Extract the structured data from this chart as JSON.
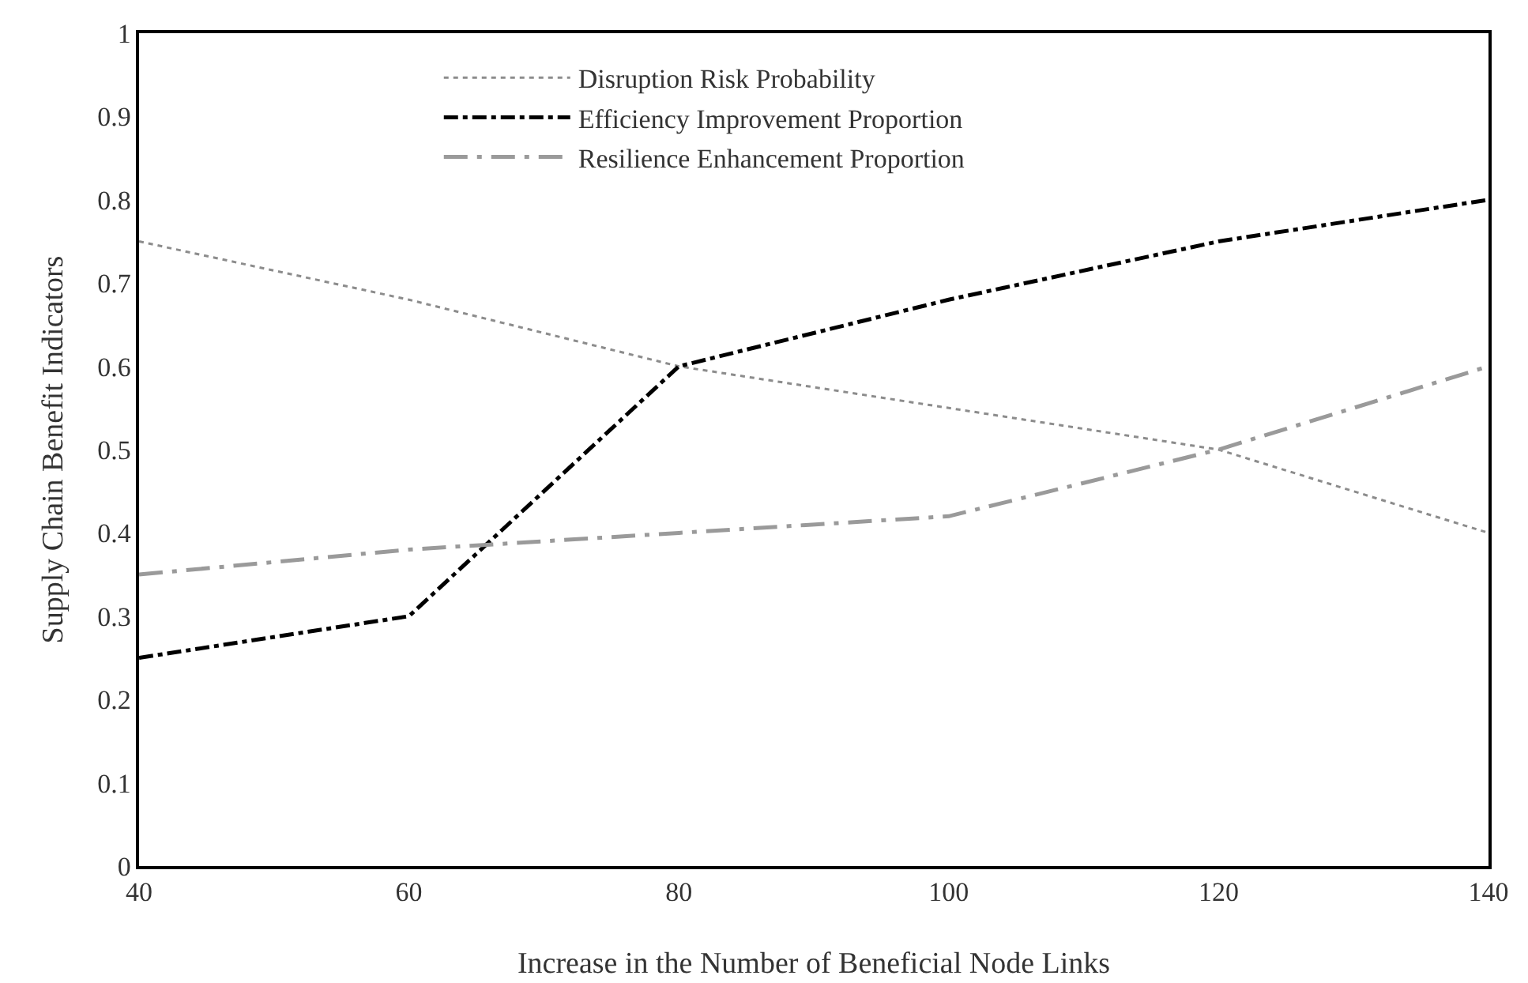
{
  "chart_data": {
    "type": "line",
    "xlabel": "Increase in the Number of Beneficial Node Links",
    "ylabel": "Supply Chain Benefit Indicators",
    "x": [
      40,
      60,
      80,
      100,
      120,
      140
    ],
    "series": [
      {
        "name": "Disruption Risk Probability",
        "color": "#8c8c8c",
        "line_style": "dotted",
        "values": [
          0.75,
          0.68,
          0.6,
          0.55,
          0.5,
          0.4
        ]
      },
      {
        "name": "Efficiency Improvement Proportion",
        "color": "#000000",
        "line_style": "dashdot",
        "values": [
          0.25,
          0.3,
          0.6,
          0.68,
          0.75,
          0.8
        ]
      },
      {
        "name": "Resilience Enhancement Proportion",
        "color": "#9a9a9a",
        "line_style": "longdashdot",
        "values": [
          0.35,
          0.38,
          0.4,
          0.42,
          0.5,
          0.6
        ]
      }
    ],
    "xlim": [
      40,
      140
    ],
    "xticks": [
      40,
      60,
      80,
      100,
      120,
      140
    ],
    "ylim": [
      0,
      1
    ],
    "yticks": [
      0,
      0.1,
      0.2,
      0.3,
      0.4,
      0.5,
      0.6,
      0.7,
      0.8,
      0.9,
      1
    ],
    "grid": false,
    "legend": "top",
    "marker": "none"
  }
}
